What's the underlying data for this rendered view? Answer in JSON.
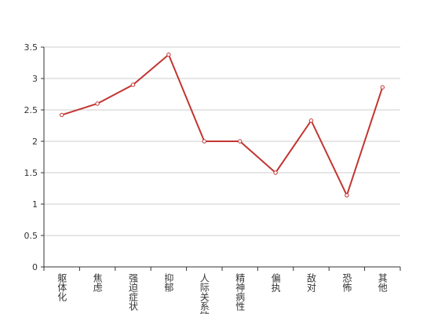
{
  "chart_data": {
    "type": "line",
    "categories": [
      "躯体化",
      "焦虑",
      "强迫症状",
      "抑郁",
      "人际关系敏感",
      "精神病性",
      "偏执",
      "敌对",
      "恐怖",
      "其他"
    ],
    "values": [
      2.42,
      2.6,
      2.9,
      3.38,
      2.0,
      2.0,
      1.5,
      2.33,
      1.14,
      2.86
    ],
    "color": "#c23531",
    "ylim": [
      0,
      3.5
    ],
    "yticks": [
      0,
      0.5,
      1,
      1.5,
      2,
      2.5,
      3,
      3.5
    ],
    "grid": true
  }
}
